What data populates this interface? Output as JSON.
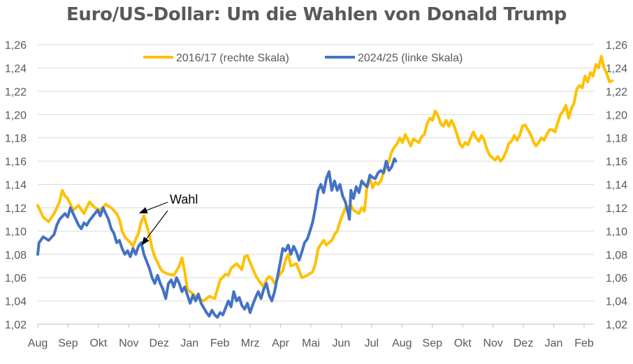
{
  "chart_data": {
    "type": "line",
    "title": "Euro/US-Dollar: Um die Wahlen von Donald Trump",
    "x_labels": [
      "Aug",
      "Sep",
      "Okt",
      "Nov",
      "Dez",
      "Jan",
      "Feb",
      "Mrz",
      "Apr",
      "Mai",
      "Jun",
      "Jul",
      "Aug",
      "Sep",
      "Okt",
      "Nov",
      "Dez",
      "Jan",
      "Feb"
    ],
    "y_ticks": [
      "1,02",
      "1,04",
      "1,06",
      "1,08",
      "1,10",
      "1,12",
      "1,14",
      "1,16",
      "1,18",
      "1,20",
      "1,22",
      "1,24",
      "1,26"
    ],
    "ylim": [
      1.02,
      1.26
    ],
    "y_axis_left": "2024/25",
    "y_axis_right": "2016/17",
    "grid": true,
    "legend_position": "top",
    "annotation": "Wahl",
    "series": [
      {
        "name": "2016/17 (rechte Skala)",
        "color": "#FFC000",
        "points": [
          [
            0.0,
            1.122
          ],
          [
            0.2,
            1.112
          ],
          [
            0.4,
            1.108
          ],
          [
            0.6,
            1.115
          ],
          [
            0.8,
            1.125
          ],
          [
            0.9,
            1.135
          ],
          [
            1.0,
            1.13
          ],
          [
            1.1,
            1.128
          ],
          [
            1.3,
            1.118
          ],
          [
            1.5,
            1.122
          ],
          [
            1.7,
            1.115
          ],
          [
            1.9,
            1.125
          ],
          [
            2.1,
            1.12
          ],
          [
            2.3,
            1.118
          ],
          [
            2.5,
            1.123
          ],
          [
            2.7,
            1.12
          ],
          [
            2.9,
            1.115
          ],
          [
            3.0,
            1.11
          ],
          [
            3.1,
            1.1
          ],
          [
            3.2,
            1.095
          ],
          [
            3.4,
            1.09
          ],
          [
            3.5,
            1.087
          ],
          [
            3.6,
            1.093
          ],
          [
            3.7,
            1.098
          ],
          [
            3.8,
            1.108
          ],
          [
            3.9,
            1.113
          ],
          [
            4.0,
            1.105
          ],
          [
            4.1,
            1.097
          ],
          [
            4.2,
            1.085
          ],
          [
            4.3,
            1.078
          ],
          [
            4.4,
            1.073
          ],
          [
            4.5,
            1.068
          ],
          [
            4.6,
            1.065
          ],
          [
            4.8,
            1.063
          ],
          [
            5.0,
            1.062
          ],
          [
            5.2,
            1.07
          ],
          [
            5.3,
            1.077
          ],
          [
            5.4,
            1.065
          ],
          [
            5.5,
            1.05
          ],
          [
            5.7,
            1.046
          ],
          [
            5.9,
            1.042
          ],
          [
            6.1,
            1.04
          ],
          [
            6.3,
            1.044
          ],
          [
            6.5,
            1.042
          ],
          [
            6.6,
            1.05
          ],
          [
            6.7,
            1.058
          ],
          [
            6.9,
            1.063
          ],
          [
            7.0,
            1.062
          ],
          [
            7.1,
            1.068
          ],
          [
            7.3,
            1.072
          ],
          [
            7.5,
            1.067
          ],
          [
            7.6,
            1.078
          ],
          [
            7.7,
            1.079
          ],
          [
            7.8,
            1.073
          ],
          [
            8.0,
            1.062
          ],
          [
            8.1,
            1.058
          ],
          [
            8.3,
            1.052
          ],
          [
            8.4,
            1.058
          ],
          [
            8.5,
            1.061
          ],
          [
            8.6,
            1.059
          ],
          [
            8.7,
            1.055
          ],
          [
            8.9,
            1.063
          ],
          [
            9.0,
            1.066
          ],
          [
            9.1,
            1.075
          ],
          [
            9.2,
            1.08
          ],
          [
            9.3,
            1.07
          ],
          [
            9.5,
            1.072
          ],
          [
            9.6,
            1.066
          ],
          [
            9.7,
            1.06
          ],
          [
            9.9,
            1.062
          ],
          [
            10.1,
            1.065
          ],
          [
            10.2,
            1.072
          ],
          [
            10.3,
            1.085
          ],
          [
            10.5,
            1.092
          ],
          [
            10.6,
            1.088
          ],
          [
            10.8,
            1.092
          ],
          [
            10.9,
            1.097
          ],
          [
            11.0,
            1.1
          ],
          [
            11.1,
            1.108
          ],
          [
            11.2,
            1.114
          ],
          [
            11.3,
            1.12
          ],
          [
            11.5,
            1.122
          ],
          [
            11.6,
            1.118
          ],
          [
            11.8,
            1.115
          ],
          [
            11.9,
            1.12
          ],
          [
            12.0,
            1.117
          ],
          [
            12.1,
            1.14
          ],
          [
            12.2,
            1.145
          ],
          [
            12.3,
            1.137
          ],
          [
            12.4,
            1.142
          ],
          [
            12.5,
            1.14
          ],
          [
            12.6,
            1.143
          ],
          [
            12.7,
            1.15
          ],
          [
            12.8,
            1.155
          ],
          [
            12.9,
            1.16
          ],
          [
            13.0,
            1.168
          ],
          [
            13.1,
            1.172
          ],
          [
            13.2,
            1.175
          ],
          [
            13.3,
            1.18
          ],
          [
            13.4,
            1.176
          ],
          [
            13.5,
            1.183
          ],
          [
            13.6,
            1.178
          ],
          [
            13.7,
            1.173
          ],
          [
            13.8,
            1.179
          ],
          [
            14.0,
            1.176
          ],
          [
            14.1,
            1.181
          ],
          [
            14.2,
            1.183
          ],
          [
            14.3,
            1.192
          ],
          [
            14.4,
            1.197
          ],
          [
            14.5,
            1.195
          ],
          [
            14.6,
            1.203
          ],
          [
            14.7,
            1.199
          ],
          [
            14.8,
            1.192
          ],
          [
            14.9,
            1.19
          ],
          [
            15.0,
            1.195
          ],
          [
            15.1,
            1.19
          ],
          [
            15.2,
            1.195
          ],
          [
            15.3,
            1.19
          ],
          [
            15.4,
            1.183
          ],
          [
            15.5,
            1.175
          ],
          [
            15.6,
            1.172
          ],
          [
            15.7,
            1.176
          ],
          [
            15.8,
            1.174
          ],
          [
            15.9,
            1.18
          ],
          [
            16.0,
            1.185
          ],
          [
            16.1,
            1.18
          ],
          [
            16.2,
            1.177
          ],
          [
            16.3,
            1.182
          ],
          [
            16.4,
            1.178
          ],
          [
            16.5,
            1.17
          ],
          [
            16.6,
            1.165
          ],
          [
            16.7,
            1.163
          ],
          [
            16.8,
            1.161
          ],
          [
            16.9,
            1.164
          ],
          [
            17.0,
            1.16
          ],
          [
            17.1,
            1.163
          ],
          [
            17.2,
            1.168
          ],
          [
            17.3,
            1.175
          ],
          [
            17.4,
            1.177
          ],
          [
            17.5,
            1.182
          ],
          [
            17.6,
            1.178
          ],
          [
            17.7,
            1.182
          ],
          [
            17.8,
            1.19
          ],
          [
            17.9,
            1.191
          ],
          [
            18.0,
            1.187
          ],
          [
            18.1,
            1.183
          ],
          [
            18.2,
            1.177
          ],
          [
            18.3,
            1.173
          ],
          [
            18.4,
            1.176
          ],
          [
            18.5,
            1.18
          ],
          [
            18.6,
            1.178
          ],
          [
            18.7,
            1.183
          ],
          [
            18.8,
            1.187
          ],
          [
            18.9,
            1.187
          ],
          [
            19.0,
            1.185
          ],
          [
            19.1,
            1.193
          ],
          [
            19.2,
            1.2
          ],
          [
            19.3,
            1.203
          ],
          [
            19.4,
            1.208
          ],
          [
            19.5,
            1.197
          ],
          [
            19.6,
            1.205
          ],
          [
            19.7,
            1.21
          ],
          [
            19.8,
            1.222
          ],
          [
            19.9,
            1.225
          ],
          [
            20.0,
            1.223
          ],
          [
            20.1,
            1.233
          ],
          [
            20.2,
            1.228
          ],
          [
            20.3,
            1.236
          ],
          [
            20.4,
            1.233
          ],
          [
            20.5,
            1.243
          ],
          [
            20.6,
            1.24
          ],
          [
            20.7,
            1.25
          ],
          [
            20.8,
            1.24
          ],
          [
            20.9,
            1.235
          ],
          [
            21.0,
            1.228
          ],
          [
            21.1,
            1.229
          ]
        ]
      },
      {
        "name": "2024/25 (linke Skala)",
        "color": "#4472C4",
        "points": [
          [
            0.0,
            1.08
          ],
          [
            0.05,
            1.09
          ],
          [
            0.2,
            1.095
          ],
          [
            0.4,
            1.092
          ],
          [
            0.6,
            1.097
          ],
          [
            0.7,
            1.105
          ],
          [
            0.8,
            1.11
          ],
          [
            1.0,
            1.115
          ],
          [
            1.1,
            1.112
          ],
          [
            1.2,
            1.12
          ],
          [
            1.3,
            1.115
          ],
          [
            1.4,
            1.11
          ],
          [
            1.5,
            1.105
          ],
          [
            1.6,
            1.102
          ],
          [
            1.7,
            1.107
          ],
          [
            1.8,
            1.105
          ],
          [
            1.9,
            1.109
          ],
          [
            2.0,
            1.112
          ],
          [
            2.1,
            1.115
          ],
          [
            2.2,
            1.118
          ],
          [
            2.3,
            1.113
          ],
          [
            2.4,
            1.12
          ],
          [
            2.5,
            1.115
          ],
          [
            2.6,
            1.11
          ],
          [
            2.7,
            1.102
          ],
          [
            2.8,
            1.098
          ],
          [
            2.9,
            1.09
          ],
          [
            3.0,
            1.092
          ],
          [
            3.1,
            1.085
          ],
          [
            3.2,
            1.08
          ],
          [
            3.3,
            1.083
          ],
          [
            3.4,
            1.078
          ],
          [
            3.5,
            1.085
          ],
          [
            3.6,
            1.08
          ],
          [
            3.7,
            1.087
          ],
          [
            3.8,
            1.09
          ],
          [
            3.9,
            1.08
          ],
          [
            4.0,
            1.074
          ],
          [
            4.1,
            1.068
          ],
          [
            4.2,
            1.06
          ],
          [
            4.3,
            1.055
          ],
          [
            4.4,
            1.062
          ],
          [
            4.5,
            1.055
          ],
          [
            4.6,
            1.05
          ],
          [
            4.7,
            1.042
          ],
          [
            4.8,
            1.055
          ],
          [
            4.9,
            1.058
          ],
          [
            5.0,
            1.052
          ],
          [
            5.1,
            1.06
          ],
          [
            5.2,
            1.055
          ],
          [
            5.3,
            1.048
          ],
          [
            5.4,
            1.052
          ],
          [
            5.5,
            1.045
          ],
          [
            5.6,
            1.038
          ],
          [
            5.7,
            1.045
          ],
          [
            5.8,
            1.04
          ],
          [
            5.9,
            1.046
          ],
          [
            6.0,
            1.038
          ],
          [
            6.1,
            1.034
          ],
          [
            6.2,
            1.03
          ],
          [
            6.3,
            1.027
          ],
          [
            6.4,
            1.032
          ],
          [
            6.5,
            1.028
          ],
          [
            6.6,
            1.026
          ],
          [
            6.7,
            1.03
          ],
          [
            6.8,
            1.028
          ],
          [
            6.9,
            1.034
          ],
          [
            7.0,
            1.04
          ],
          [
            7.1,
            1.035
          ],
          [
            7.2,
            1.048
          ],
          [
            7.3,
            1.04
          ],
          [
            7.4,
            1.043
          ],
          [
            7.5,
            1.036
          ],
          [
            7.6,
            1.033
          ],
          [
            7.7,
            1.038
          ],
          [
            7.8,
            1.03
          ],
          [
            7.9,
            1.037
          ],
          [
            8.0,
            1.043
          ],
          [
            8.1,
            1.048
          ],
          [
            8.2,
            1.042
          ],
          [
            8.3,
            1.05
          ],
          [
            8.4,
            1.055
          ],
          [
            8.5,
            1.045
          ],
          [
            8.6,
            1.04
          ],
          [
            8.7,
            1.048
          ],
          [
            8.8,
            1.06
          ],
          [
            8.9,
            1.072
          ],
          [
            9.0,
            1.085
          ],
          [
            9.1,
            1.083
          ],
          [
            9.2,
            1.088
          ],
          [
            9.3,
            1.08
          ],
          [
            9.4,
            1.087
          ],
          [
            9.5,
            1.082
          ],
          [
            9.6,
            1.075
          ],
          [
            9.7,
            1.082
          ],
          [
            9.8,
            1.09
          ],
          [
            9.9,
            1.093
          ],
          [
            10.0,
            1.1
          ],
          [
            10.1,
            1.108
          ],
          [
            10.2,
            1.12
          ],
          [
            10.3,
            1.135
          ],
          [
            10.4,
            1.14
          ],
          [
            10.5,
            1.133
          ],
          [
            10.6,
            1.145
          ],
          [
            10.7,
            1.151
          ],
          [
            10.8,
            1.135
          ],
          [
            10.9,
            1.143
          ],
          [
            11.0,
            1.135
          ],
          [
            11.1,
            1.14
          ],
          [
            11.2,
            1.13
          ],
          [
            11.3,
            1.125
          ],
          [
            11.4,
            1.115
          ],
          [
            11.45,
            1.11
          ],
          [
            11.5,
            1.135
          ],
          [
            11.6,
            1.128
          ],
          [
            11.7,
            1.138
          ],
          [
            11.8,
            1.133
          ],
          [
            11.9,
            1.143
          ],
          [
            12.0,
            1.14
          ],
          [
            12.1,
            1.138
          ],
          [
            12.2,
            1.148
          ],
          [
            12.3,
            1.146
          ],
          [
            12.4,
            1.145
          ],
          [
            12.5,
            1.15
          ],
          [
            12.6,
            1.152
          ],
          [
            12.7,
            1.15
          ],
          [
            12.8,
            1.16
          ],
          [
            12.9,
            1.152
          ],
          [
            13.0,
            1.155
          ],
          [
            13.1,
            1.162
          ],
          [
            13.15,
            1.16
          ]
        ]
      }
    ]
  }
}
